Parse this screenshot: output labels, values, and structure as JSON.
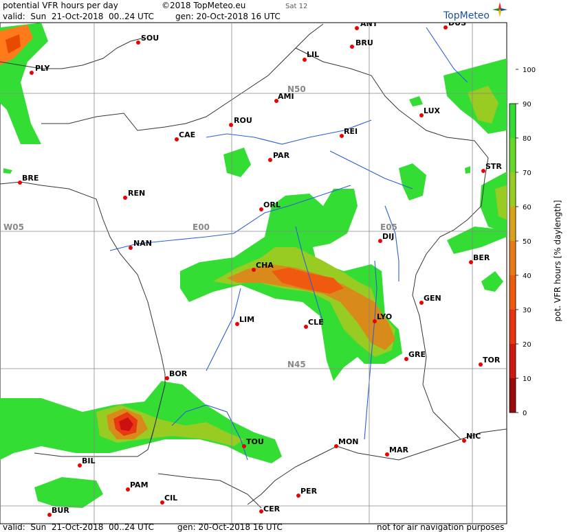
{
  "header": {
    "title": "potential VFR hours per day",
    "copyright": "©2018 TopMeteo.eu",
    "day_tag": "Sat 12",
    "valid": "valid:  Sun  21-Oct-2018  00..24 UTC",
    "gen": "gen: 20-Oct-2018 16 UTC"
  },
  "footer": {
    "valid": "valid:  Sun  21-Oct-2018  00..24 UTC",
    "gen": "gen: 20-Oct-2018 16 UTC",
    "note": "not for air navigation purposes"
  },
  "logo": {
    "text": "TopMeteo"
  },
  "grid_labels": {
    "n50": "N50",
    "n45": "N45",
    "w05": "W05",
    "e00": "E00",
    "e05": "E05"
  },
  "colorbar": {
    "title": "pot. VFR hours  [% daylength]",
    "ticks": [
      "0",
      "10",
      "20",
      "30",
      "40",
      "50",
      "60",
      "70",
      "80",
      "90",
      "100"
    ]
  },
  "cities": [
    {
      "name": "ANT"
    },
    {
      "name": "DUS"
    },
    {
      "name": "SOU"
    },
    {
      "name": "BRU"
    },
    {
      "name": "PLY"
    },
    {
      "name": "LIL"
    },
    {
      "name": "AMI"
    },
    {
      "name": "LUX"
    },
    {
      "name": "ROU"
    },
    {
      "name": "CAE"
    },
    {
      "name": "REI"
    },
    {
      "name": "PAR"
    },
    {
      "name": "BRE"
    },
    {
      "name": "STR"
    },
    {
      "name": "REN"
    },
    {
      "name": "ORL"
    },
    {
      "name": "DIJ"
    },
    {
      "name": "NAN"
    },
    {
      "name": "BER"
    },
    {
      "name": "CHA"
    },
    {
      "name": "GEN"
    },
    {
      "name": "LIM"
    },
    {
      "name": "CLE"
    },
    {
      "name": "LYO"
    },
    {
      "name": "GRE"
    },
    {
      "name": "TOR"
    },
    {
      "name": "BOR"
    },
    {
      "name": "TOU"
    },
    {
      "name": "MON"
    },
    {
      "name": "NIC"
    },
    {
      "name": "MAR"
    },
    {
      "name": "BIL"
    },
    {
      "name": "PAM"
    },
    {
      "name": "CIL"
    },
    {
      "name": "PER"
    },
    {
      "name": "BUR"
    },
    {
      "name": "CER"
    }
  ]
}
